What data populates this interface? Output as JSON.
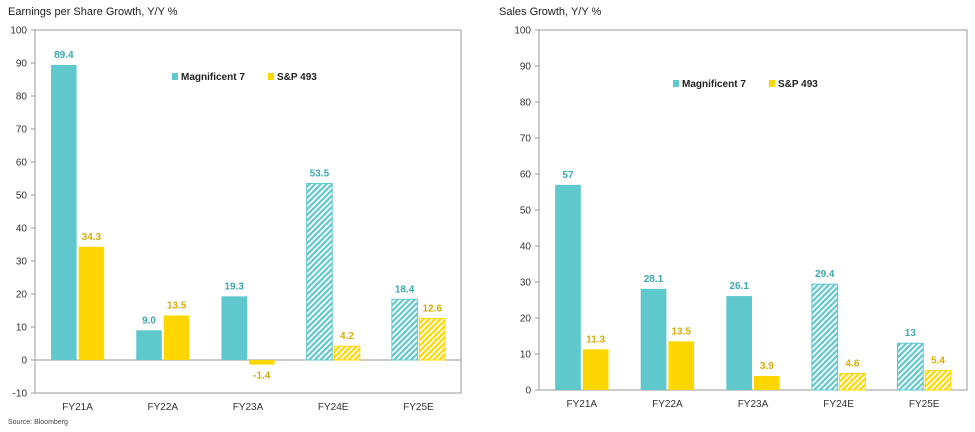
{
  "colors": {
    "mag7": "#5fc8cc",
    "sp493": "#fed700",
    "mag7_label": "#3aaab0",
    "sp493_label": "#d8ad00"
  },
  "source": "Source: Bloomberg",
  "chart_data": [
    {
      "type": "bar",
      "title": "Earnings per Share Growth, Y/Y %",
      "xlabel": "",
      "ylabel": "",
      "categories": [
        "FY21A",
        "FY22A",
        "FY23A",
        "FY24E",
        "FY25E"
      ],
      "estimate_categories": [
        "FY24E",
        "FY25E"
      ],
      "ylim": [
        -10,
        100
      ],
      "yticks": [
        -10,
        0,
        10,
        20,
        30,
        40,
        50,
        60,
        70,
        80,
        90,
        100
      ],
      "grid": false,
      "legend": "top-center",
      "series": [
        {
          "name": "Magnificent 7",
          "values": [
            89.4,
            9.0,
            19.3,
            53.5,
            18.4
          ],
          "labels": [
            "89.4",
            "9.0",
            "19.3",
            "53.5",
            "18.4"
          ]
        },
        {
          "name": "S&P 493",
          "values": [
            34.3,
            13.5,
            -1.4,
            4.2,
            12.6
          ],
          "labels": [
            "34.3",
            "13.5",
            "-1.4",
            "4.2",
            "12.6"
          ]
        }
      ]
    },
    {
      "type": "bar",
      "title": "Sales Growth, Y/Y %",
      "xlabel": "",
      "ylabel": "",
      "categories": [
        "FY21A",
        "FY22A",
        "FY23A",
        "FY24E",
        "FY25E"
      ],
      "estimate_categories": [
        "FY24E",
        "FY25E"
      ],
      "ylim": [
        0,
        100
      ],
      "yticks": [
        0,
        10,
        20,
        30,
        40,
        50,
        60,
        70,
        80,
        90,
        100
      ],
      "grid": false,
      "legend": "top-center",
      "series": [
        {
          "name": "Magnificent 7",
          "values": [
            57,
            28.1,
            26.1,
            29.4,
            13
          ],
          "labels": [
            "57",
            "28.1",
            "26.1",
            "29.4",
            "13"
          ]
        },
        {
          "name": "S&P 493",
          "values": [
            11.3,
            13.5,
            3.9,
            4.6,
            5.4
          ],
          "labels": [
            "11.3",
            "13.5",
            "3.9",
            "4.6",
            "5.4"
          ]
        }
      ]
    }
  ]
}
